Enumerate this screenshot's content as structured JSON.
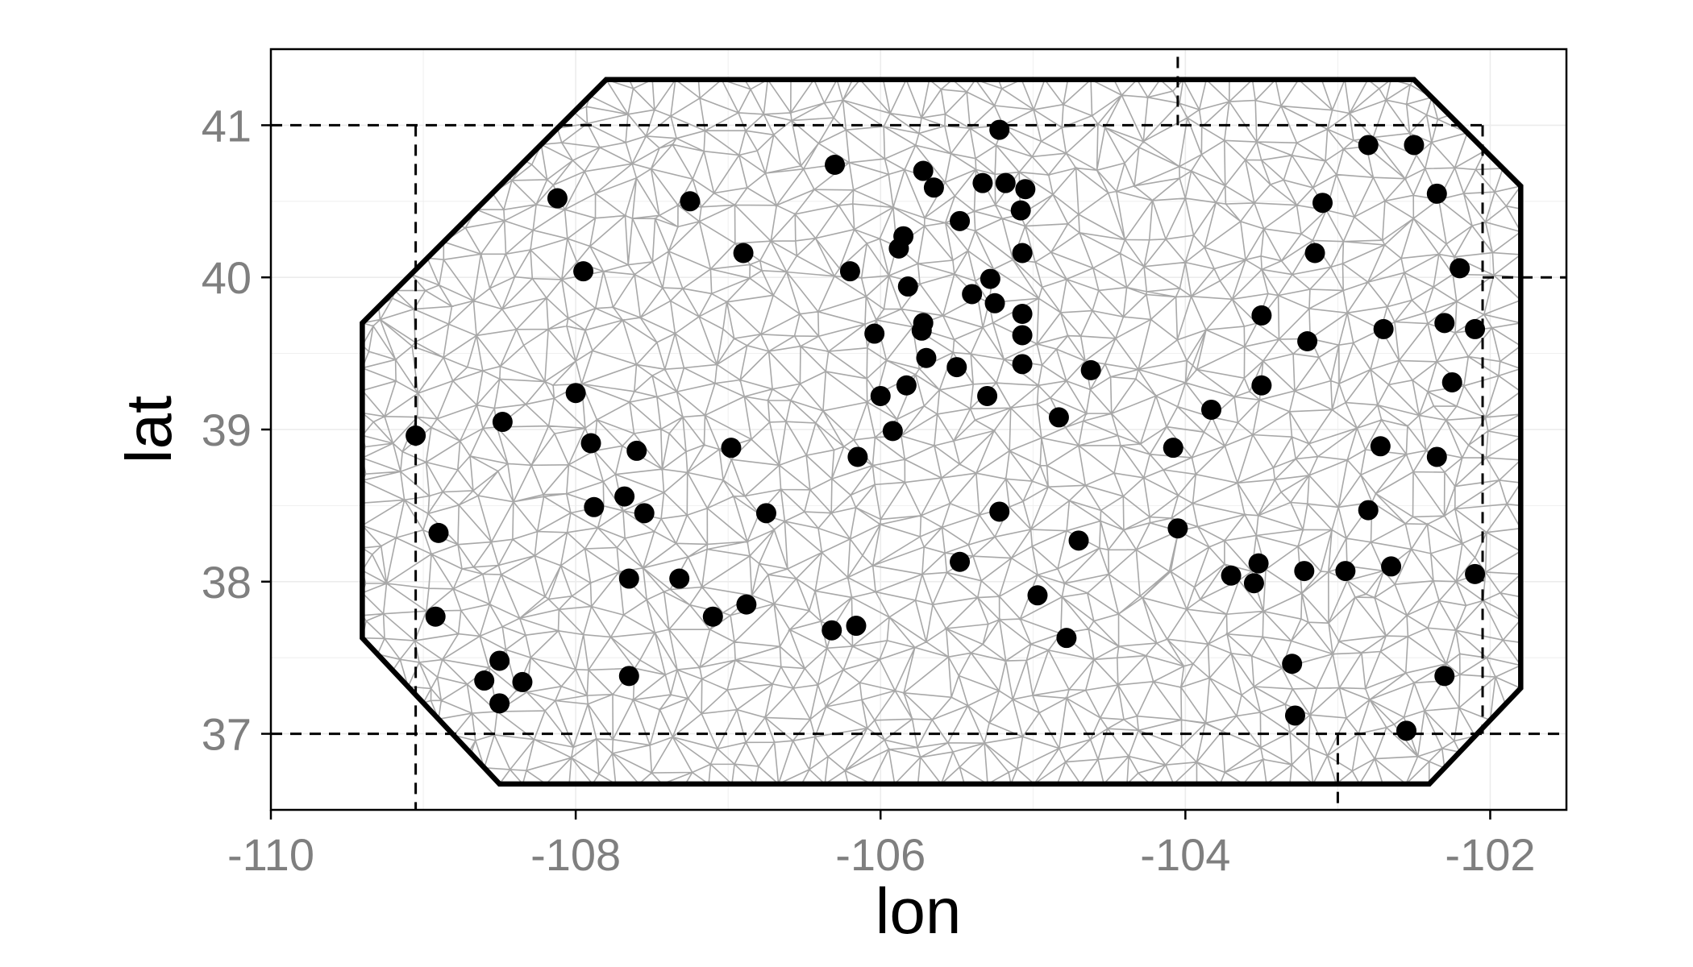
{
  "chart_data": {
    "type": "scatter",
    "xlabel": "lon",
    "ylabel": "lat",
    "xlim": [
      -110,
      -101.5
    ],
    "ylim": [
      36.5,
      41.5
    ],
    "x_ticks": [
      -110,
      -108,
      -106,
      -104,
      -102
    ],
    "y_ticks": [
      37,
      38,
      39,
      40,
      41
    ],
    "x_tick_labels": [
      "-110",
      "-108",
      "-106",
      "-104",
      "-102"
    ],
    "y_tick_labels": [
      "37",
      "38",
      "39",
      "40",
      "41"
    ],
    "grid": true,
    "legend": "none",
    "colors": {
      "points": "#000000",
      "mesh": "#a8a8a8",
      "boundary": "#000000",
      "state_border": "#000000",
      "grid": "#ececec",
      "tick_text": "#7f7f7f"
    },
    "mesh_boundary": [
      [
        -107.8,
        41.3
      ],
      [
        -102.5,
        41.3
      ],
      [
        -101.8,
        40.6
      ],
      [
        -101.8,
        37.3
      ],
      [
        -102.4,
        36.67
      ],
      [
        -108.5,
        36.67
      ],
      [
        -109.4,
        37.63
      ],
      [
        -109.4,
        39.7
      ]
    ],
    "state_borders": [
      [
        [
          -110,
          41
        ],
        [
          -102.05,
          41
        ]
      ],
      [
        [
          -109.05,
          41
        ],
        [
          -109.05,
          36.5
        ]
      ],
      [
        [
          -110,
          37
        ],
        [
          -101.5,
          37
        ]
      ],
      [
        [
          -102.05,
          41
        ],
        [
          -102.05,
          37
        ]
      ],
      [
        [
          -104.05,
          41.45
        ],
        [
          -104.05,
          41
        ]
      ],
      [
        [
          -102.05,
          40
        ],
        [
          -101.5,
          40
        ]
      ],
      [
        [
          -103,
          37
        ],
        [
          -103,
          36.5
        ]
      ]
    ],
    "points": [
      [
        -105.22,
        40.97
      ],
      [
        -106.3,
        40.74
      ],
      [
        -105.72,
        40.7
      ],
      [
        -105.18,
        40.62
      ],
      [
        -105.33,
        40.62
      ],
      [
        -105.05,
        40.58
      ],
      [
        -105.65,
        40.59
      ],
      [
        -108.12,
        40.52
      ],
      [
        -107.25,
        40.5
      ],
      [
        -105.08,
        40.44
      ],
      [
        -105.48,
        40.37
      ],
      [
        -105.85,
        40.27
      ],
      [
        -105.88,
        40.19
      ],
      [
        -106.9,
        40.16
      ],
      [
        -105.07,
        40.16
      ],
      [
        -107.95,
        40.04
      ],
      [
        -106.2,
        40.04
      ],
      [
        -105.28,
        39.99
      ],
      [
        -105.82,
        39.94
      ],
      [
        -105.4,
        39.89
      ],
      [
        -105.25,
        39.83
      ],
      [
        -105.07,
        39.76
      ],
      [
        -105.72,
        39.7
      ],
      [
        -105.73,
        39.65
      ],
      [
        -106.04,
        39.63
      ],
      [
        -105.07,
        39.62
      ],
      [
        -105.7,
        39.47
      ],
      [
        -105.07,
        39.43
      ],
      [
        -105.5,
        39.41
      ],
      [
        -104.62,
        39.39
      ],
      [
        -105.83,
        39.29
      ],
      [
        -106.0,
        39.22
      ],
      [
        -105.3,
        39.22
      ],
      [
        -108.0,
        39.24
      ],
      [
        -108.48,
        39.05
      ],
      [
        -109.05,
        38.96
      ],
      [
        -105.92,
        38.99
      ],
      [
        -107.9,
        38.91
      ],
      [
        -106.98,
        38.88
      ],
      [
        -107.6,
        38.86
      ],
      [
        -106.15,
        38.82
      ],
      [
        -107.88,
        38.49
      ],
      [
        -107.68,
        38.56
      ],
      [
        -107.55,
        38.45
      ],
      [
        -106.75,
        38.45
      ],
      [
        -105.22,
        38.46
      ],
      [
        -104.83,
        39.08
      ],
      [
        -104.08,
        38.88
      ],
      [
        -103.83,
        39.13
      ],
      [
        -104.05,
        38.35
      ],
      [
        -104.7,
        38.27
      ],
      [
        -108.9,
        38.32
      ],
      [
        -105.48,
        38.13
      ],
      [
        -107.32,
        38.02
      ],
      [
        -107.65,
        38.02
      ],
      [
        -104.97,
        37.91
      ],
      [
        -106.88,
        37.85
      ],
      [
        -107.1,
        37.77
      ],
      [
        -108.92,
        37.77
      ],
      [
        -106.16,
        37.71
      ],
      [
        -106.32,
        37.68
      ],
      [
        -104.78,
        37.63
      ],
      [
        -108.5,
        37.48
      ],
      [
        -108.6,
        37.35
      ],
      [
        -108.35,
        37.34
      ],
      [
        -107.65,
        37.38
      ],
      [
        -108.5,
        37.2
      ],
      [
        -103.5,
        39.75
      ],
      [
        -103.2,
        39.58
      ],
      [
        -103.5,
        39.29
      ],
      [
        -103.7,
        38.04
      ],
      [
        -103.55,
        37.99
      ],
      [
        -103.52,
        38.12
      ],
      [
        -103.22,
        38.07
      ],
      [
        -102.95,
        38.07
      ],
      [
        -102.65,
        38.1
      ],
      [
        -102.8,
        38.47
      ],
      [
        -102.72,
        38.89
      ],
      [
        -102.35,
        38.82
      ],
      [
        -103.3,
        37.46
      ],
      [
        -103.28,
        37.12
      ],
      [
        -102.55,
        37.02
      ],
      [
        -102.3,
        37.38
      ],
      [
        -102.1,
        38.05
      ],
      [
        -102.8,
        40.87
      ],
      [
        -102.5,
        40.87
      ],
      [
        -103.1,
        40.49
      ],
      [
        -102.35,
        40.55
      ],
      [
        -103.15,
        40.16
      ],
      [
        -102.2,
        40.06
      ],
      [
        -102.7,
        39.66
      ],
      [
        -102.3,
        39.7
      ],
      [
        -102.1,
        39.66
      ],
      [
        -102.25,
        39.31
      ]
    ]
  }
}
